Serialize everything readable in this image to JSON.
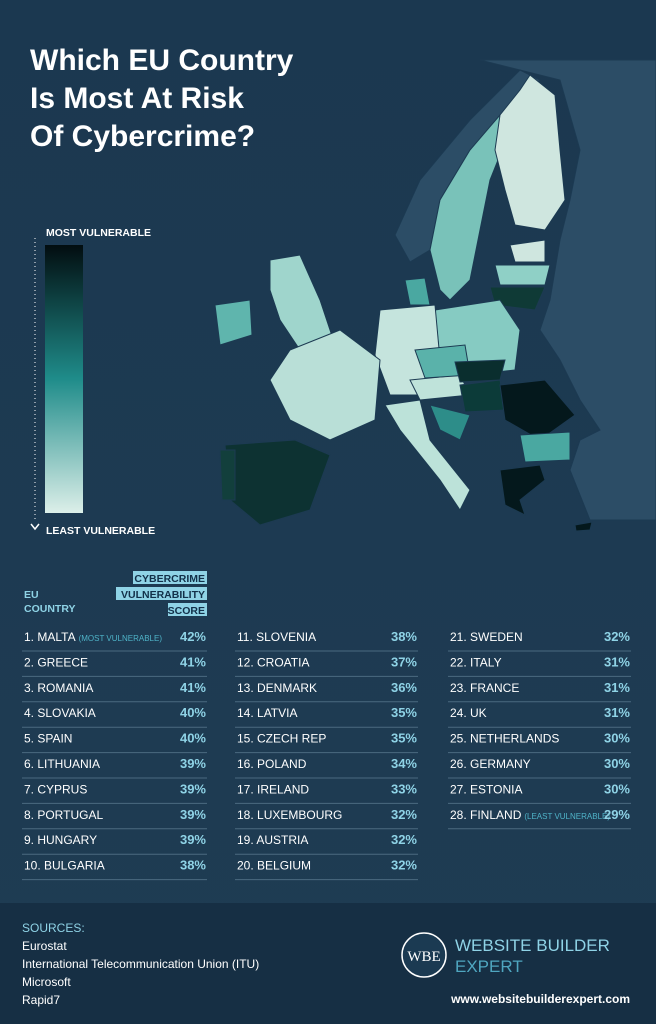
{
  "header": {
    "title_lines": [
      "Which EU Country",
      "Is Most At Risk",
      "Of Cybercrime?"
    ]
  },
  "legend": {
    "top": "MOST VULNERABLE",
    "bottom": "LEAST VULNERABLE"
  },
  "table": {
    "headers": {
      "country": [
        "EU",
        "COUNTRY"
      ],
      "score": [
        "CYBERCRIME",
        "VULNERABILITY",
        "SCORE"
      ]
    },
    "columns": [
      [
        {
          "name": "1. MALTA",
          "note": "(MOST VULNERABLE)",
          "score": "42%"
        },
        {
          "name": "2. GREECE",
          "score": "41%"
        },
        {
          "name": "3. ROMANIA",
          "score": "41%"
        },
        {
          "name": "4. SLOVAKIA",
          "score": "40%"
        },
        {
          "name": "5. SPAIN",
          "score": "40%"
        },
        {
          "name": "6. LITHUANIA",
          "score": "39%"
        },
        {
          "name": "7. CYPRUS",
          "score": "39%"
        },
        {
          "name": "8. PORTUGAL",
          "score": "39%"
        },
        {
          "name": "9. HUNGARY",
          "score": "39%"
        },
        {
          "name": "10. BULGARIA",
          "score": "38%"
        }
      ],
      [
        {
          "name": "11. SLOVENIA",
          "score": "38%"
        },
        {
          "name": "12. CROATIA",
          "score": "37%"
        },
        {
          "name": "13. DENMARK",
          "score": "36%"
        },
        {
          "name": "14. LATVIA",
          "score": "35%"
        },
        {
          "name": "15. CZECH REP",
          "score": "35%"
        },
        {
          "name": "16. POLAND",
          "score": "34%"
        },
        {
          "name": "17. IRELAND",
          "score": "33%"
        },
        {
          "name": "18. LUXEMBOURG",
          "score": "32%"
        },
        {
          "name": "19. AUSTRIA",
          "score": "32%"
        },
        {
          "name": "20. BELGIUM",
          "score": "32%"
        }
      ],
      [
        {
          "name": "21. SWEDEN",
          "score": "32%"
        },
        {
          "name": "22. ITALY",
          "score": "31%"
        },
        {
          "name": "23. FRANCE",
          "score": "31%"
        },
        {
          "name": "24. UK",
          "score": "31%"
        },
        {
          "name": "25. NETHERLANDS",
          "score": "30%"
        },
        {
          "name": "26. GERMANY",
          "score": "30%"
        },
        {
          "name": "27. ESTONIA",
          "score": "30%"
        },
        {
          "name": "28. FINLAND",
          "note": "(LEAST VULNERABLE)",
          "score": "29%"
        }
      ]
    ]
  },
  "sources": {
    "title": "SOURCES:",
    "items": [
      "Eurostat",
      "International Telecommunication Union (ITU)",
      "Microsoft",
      "Rapid7"
    ]
  },
  "brand": {
    "logo": "WBE",
    "line1": "WEBSITE BUILDER",
    "line2": "EXPERT",
    "url": "www.websitebuilderexpert.com"
  }
}
